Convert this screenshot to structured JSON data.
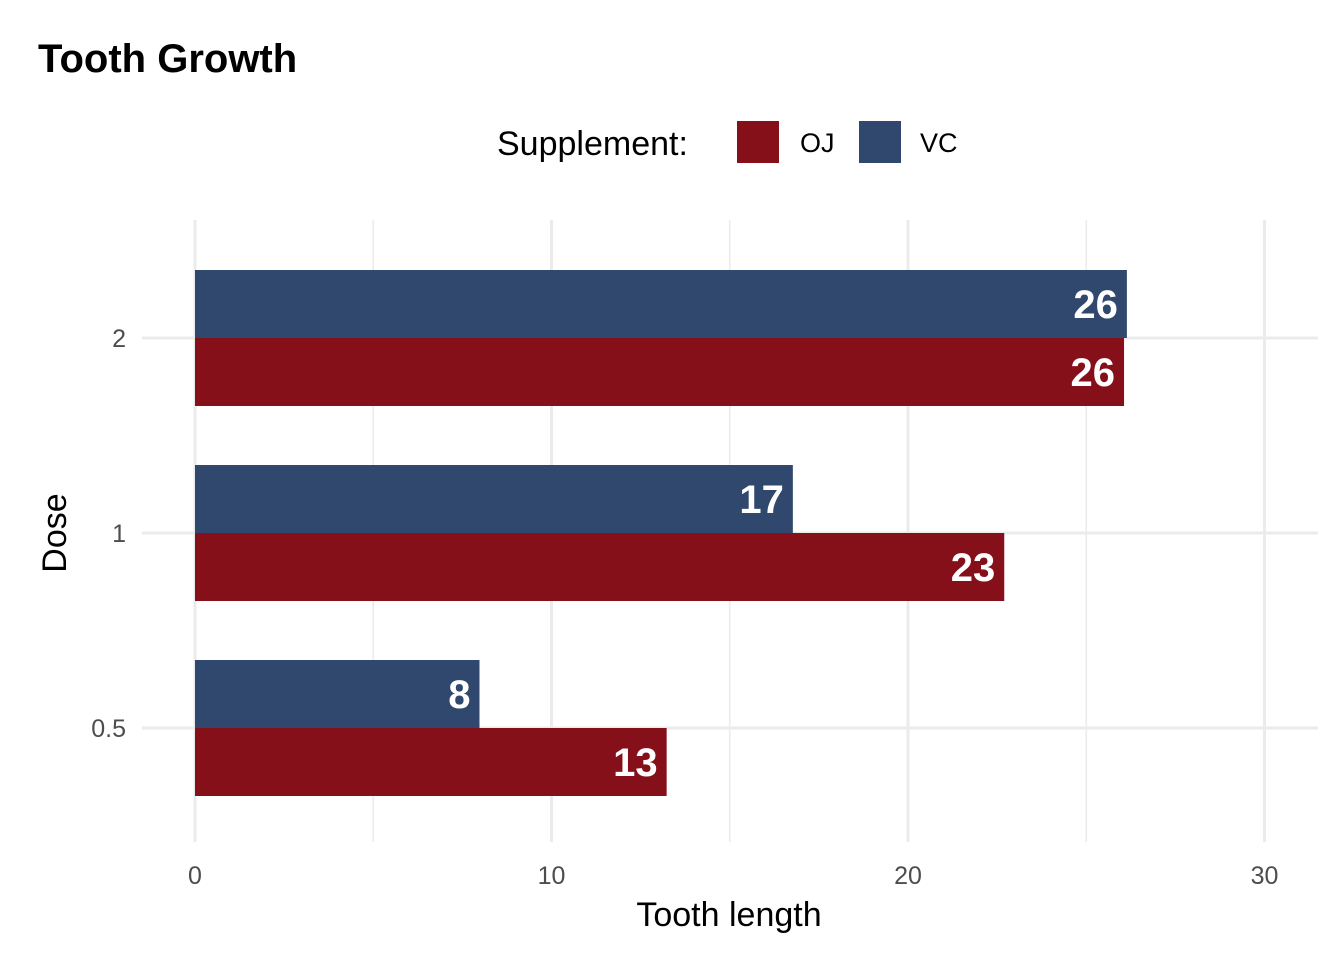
{
  "chart_data": {
    "type": "bar",
    "orientation": "horizontal",
    "title": "Tooth Growth",
    "xlabel": "Tooth length",
    "ylabel": "Dose",
    "categories": [
      "0.5",
      "1",
      "2"
    ],
    "series": [
      {
        "name": "OJ",
        "color": "#86101A",
        "values": [
          13.23,
          22.7,
          26.06
        ],
        "labels": [
          "13",
          "23",
          "26"
        ]
      },
      {
        "name": "VC",
        "color": "#30486E",
        "values": [
          7.98,
          16.77,
          26.14
        ],
        "labels": [
          "8",
          "17",
          "26"
        ]
      }
    ],
    "legend": {
      "title": "Supplement:",
      "position": "top"
    },
    "xlim": [
      0,
      30
    ],
    "xticks": [
      "0",
      "10",
      "20",
      "30"
    ],
    "grid": true
  }
}
